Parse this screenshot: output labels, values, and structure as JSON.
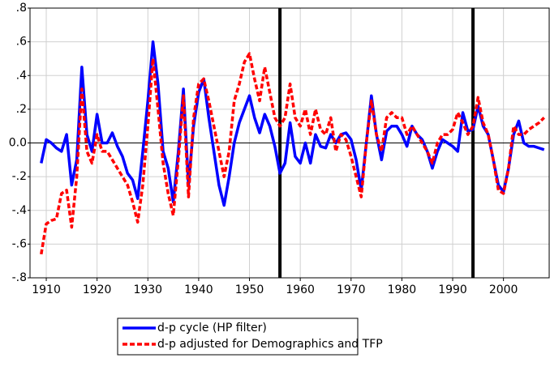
{
  "chart_data": {
    "type": "line",
    "x": [
      1909,
      1910,
      1911,
      1912,
      1913,
      1914,
      1915,
      1916,
      1917,
      1918,
      1919,
      1920,
      1921,
      1922,
      1923,
      1924,
      1925,
      1926,
      1927,
      1928,
      1929,
      1930,
      1931,
      1932,
      1933,
      1934,
      1935,
      1936,
      1937,
      1938,
      1939,
      1940,
      1941,
      1942,
      1943,
      1944,
      1945,
      1946,
      1947,
      1948,
      1949,
      1950,
      1951,
      1952,
      1953,
      1954,
      1955,
      1956,
      1957,
      1958,
      1959,
      1960,
      1961,
      1962,
      1963,
      1964,
      1965,
      1966,
      1967,
      1968,
      1969,
      1970,
      1971,
      1972,
      1973,
      1974,
      1975,
      1976,
      1977,
      1978,
      1979,
      1980,
      1981,
      1982,
      1983,
      1984,
      1985,
      1986,
      1987,
      1988,
      1989,
      1990,
      1991,
      1992,
      1993,
      1994,
      1995,
      1996,
      1997,
      1998,
      1999,
      2000,
      2001,
      2002,
      2003,
      2004,
      2005,
      2006,
      2007,
      2008
    ],
    "series": [
      {
        "name": "d-p cycle (HP filter)",
        "color": "#0000ff",
        "dash": false,
        "values": [
          -0.12,
          0.02,
          0.0,
          -0.03,
          -0.05,
          0.05,
          -0.25,
          -0.1,
          0.45,
          0.05,
          -0.05,
          0.17,
          0.0,
          0.0,
          0.06,
          -0.02,
          -0.08,
          -0.18,
          -0.22,
          -0.33,
          -0.05,
          0.25,
          0.6,
          0.35,
          -0.05,
          -0.15,
          -0.35,
          -0.05,
          0.32,
          -0.25,
          0.1,
          0.3,
          0.38,
          0.15,
          -0.05,
          -0.25,
          -0.37,
          -0.2,
          0.0,
          0.12,
          0.2,
          0.28,
          0.15,
          0.06,
          0.17,
          0.1,
          -0.02,
          -0.18,
          -0.12,
          0.12,
          -0.08,
          -0.12,
          0.0,
          -0.12,
          0.05,
          -0.02,
          -0.03,
          0.05,
          0.0,
          0.05,
          0.06,
          0.02,
          -0.1,
          -0.28,
          0.0,
          0.28,
          0.05,
          -0.1,
          0.07,
          0.1,
          0.1,
          0.05,
          -0.02,
          0.1,
          0.05,
          0.02,
          -0.05,
          -0.15,
          -0.05,
          0.02,
          0.0,
          -0.02,
          -0.05,
          0.18,
          0.07,
          0.08,
          0.22,
          0.1,
          0.05,
          -0.1,
          -0.25,
          -0.29,
          -0.15,
          0.05,
          0.13,
          0.0,
          -0.02,
          -0.02,
          -0.03,
          -0.04
        ]
      },
      {
        "name": "d-p adjusted for Demographics and TFP",
        "color": "#ff0000",
        "dash": true,
        "values": [
          -0.66,
          -0.48,
          -0.46,
          -0.45,
          -0.3,
          -0.28,
          -0.5,
          -0.2,
          0.32,
          -0.05,
          -0.12,
          0.05,
          -0.05,
          -0.05,
          -0.1,
          -0.15,
          -0.2,
          -0.25,
          -0.35,
          -0.47,
          -0.25,
          0.1,
          0.5,
          0.2,
          -0.12,
          -0.3,
          -0.43,
          -0.1,
          0.28,
          -0.32,
          0.15,
          0.35,
          0.38,
          0.25,
          0.1,
          -0.05,
          -0.2,
          -0.05,
          0.25,
          0.35,
          0.48,
          0.53,
          0.38,
          0.25,
          0.45,
          0.3,
          0.15,
          0.1,
          0.15,
          0.35,
          0.15,
          0.1,
          0.2,
          0.05,
          0.2,
          0.08,
          0.05,
          0.15,
          -0.05,
          0.05,
          0.02,
          -0.08,
          -0.2,
          -0.32,
          0.0,
          0.25,
          0.05,
          -0.05,
          0.15,
          0.18,
          0.15,
          0.15,
          0.05,
          0.1,
          0.05,
          0.0,
          -0.05,
          -0.12,
          0.0,
          0.05,
          0.05,
          0.08,
          0.18,
          0.12,
          0.05,
          0.1,
          0.27,
          0.12,
          0.05,
          -0.1,
          -0.28,
          -0.3,
          -0.15,
          0.1,
          0.05,
          0.05,
          0.08,
          0.1,
          0.12,
          0.15
        ]
      }
    ],
    "xlim": [
      1906.8,
      2009
    ],
    "xticks": [
      1910,
      1920,
      1930,
      1940,
      1950,
      1960,
      1970,
      1980,
      1990,
      2000
    ],
    "ylim": [
      -0.8,
      0.8
    ],
    "yticks": [
      {
        "value": 0.8,
        "label": ".8"
      },
      {
        "value": 0.6,
        "label": ".6"
      },
      {
        "value": 0.4,
        "label": ".4"
      },
      {
        "value": 0.2,
        "label": ".2"
      },
      {
        "value": 0,
        "label": "0.0"
      },
      {
        "value": -0.2,
        "label": "-.2"
      },
      {
        "value": -0.4,
        "label": "-.4"
      },
      {
        "value": -0.6,
        "label": "-.6"
      },
      {
        "value": -0.8,
        "label": "-.8"
      }
    ],
    "vlines": [
      1956,
      1994
    ],
    "grid": true
  }
}
